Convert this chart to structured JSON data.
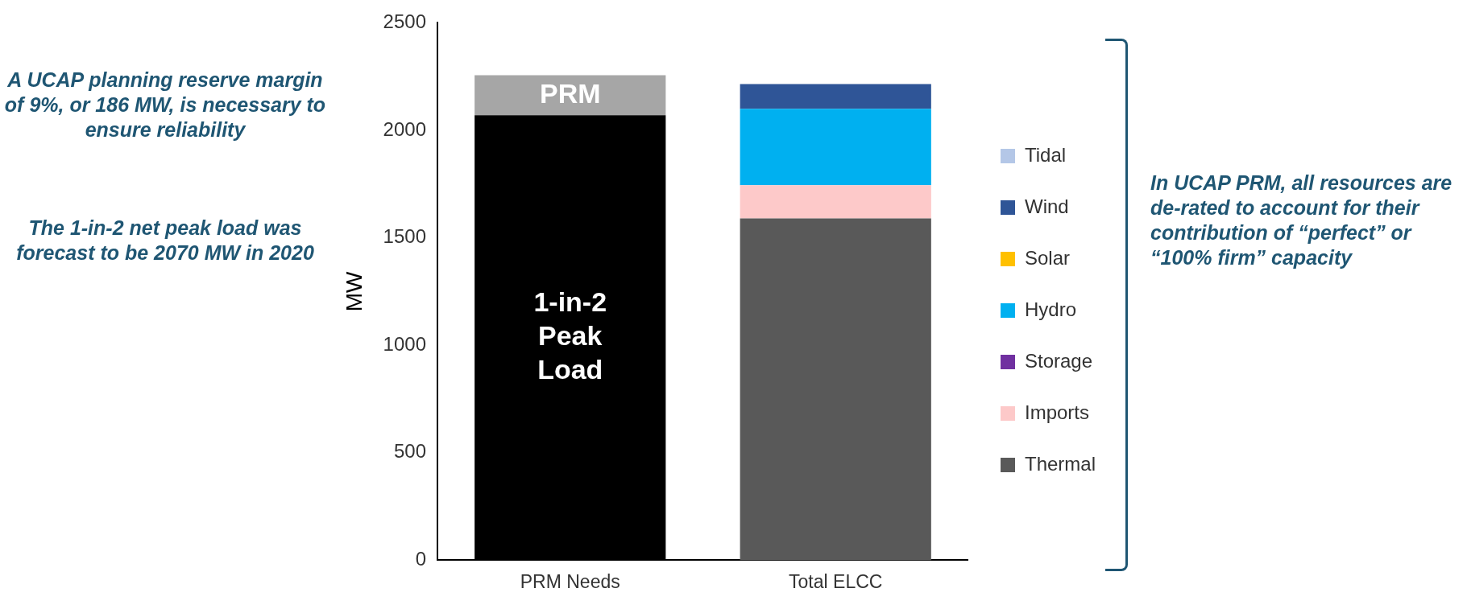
{
  "chart_data": {
    "type": "bar",
    "stacked": true,
    "categories": [
      "PRM Needs",
      "Total ELCC"
    ],
    "ylabel": "MW",
    "ylim": [
      0,
      2500
    ],
    "yticks": [
      0,
      500,
      1000,
      1500,
      2000,
      2500
    ],
    "grid": false,
    "legend": "right",
    "series": [
      {
        "color": "#000000",
        "values": [
          2070,
          null
        ]
      },
      {
        "color": "#a6a6a6",
        "values": [
          186,
          null
        ]
      },
      {
        "name": "Thermal",
        "color": "#595959",
        "values": [
          null,
          1590
        ]
      },
      {
        "name": "Imports",
        "color": "#fdc9c9",
        "values": [
          null,
          155
        ]
      },
      {
        "name": "Storage",
        "color": "#7030a0",
        "values": [
          null,
          0
        ]
      },
      {
        "name": "Hydro",
        "color": "#00b0f0",
        "values": [
          null,
          355
        ]
      },
      {
        "name": "Solar",
        "color": "#ffc000",
        "values": [
          null,
          0
        ]
      },
      {
        "name": "Wind",
        "color": "#2f5597",
        "values": [
          null,
          115
        ]
      },
      {
        "name": "Tidal",
        "color": "#b4c7e7",
        "values": [
          null,
          0
        ]
      }
    ],
    "annotations": [
      "1-in-2 Peak Load",
      "PRM",
      "A UCAP planning reserve margin of 9%, or 186 MW, is necessary to ensure reliability",
      "The 1-in-2 net peak load was forecast to be 2070 MW in 2020",
      "In UCAP PRM, all resources are de-rated to account for their contribution of “perfect” or “100% firm” capacity"
    ]
  }
}
